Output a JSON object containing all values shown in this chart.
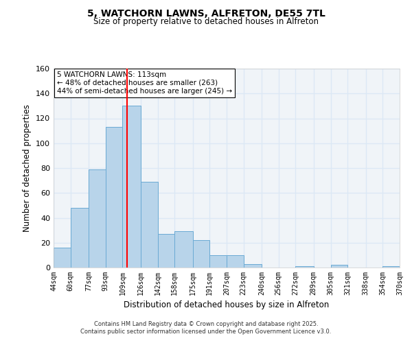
{
  "title": "5, WATCHORN LAWNS, ALFRETON, DE55 7TL",
  "subtitle": "Size of property relative to detached houses in Alfreton",
  "xlabel": "Distribution of detached houses by size in Alfreton",
  "ylabel": "Number of detached properties",
  "bar_color": "#b8d4ea",
  "bar_edge_color": "#6aaad4",
  "background_color": "#f0f4f8",
  "grid_color": "#dce8f5",
  "vline_x": 113,
  "vline_color": "red",
  "annotation_lines": [
    "5 WATCHORN LAWNS: 113sqm",
    "← 48% of detached houses are smaller (263)",
    "44% of semi-detached houses are larger (245) →"
  ],
  "bin_edges": [
    44,
    60,
    77,
    93,
    109,
    126,
    142,
    158,
    175,
    191,
    207,
    223,
    240,
    256,
    272,
    289,
    305,
    321,
    338,
    354,
    370
  ],
  "bin_heights": [
    16,
    48,
    79,
    113,
    130,
    69,
    27,
    29,
    22,
    10,
    10,
    3,
    0,
    0,
    1,
    0,
    2,
    0,
    0,
    1
  ],
  "tick_labels": [
    "44sqm",
    "60sqm",
    "77sqm",
    "93sqm",
    "109sqm",
    "126sqm",
    "142sqm",
    "158sqm",
    "175sqm",
    "191sqm",
    "207sqm",
    "223sqm",
    "240sqm",
    "256sqm",
    "272sqm",
    "289sqm",
    "305sqm",
    "321sqm",
    "338sqm",
    "354sqm",
    "370sqm"
  ],
  "ylim": [
    0,
    160
  ],
  "yticks": [
    0,
    20,
    40,
    60,
    80,
    100,
    120,
    140,
    160
  ],
  "footnote1": "Contains HM Land Registry data © Crown copyright and database right 2025.",
  "footnote2": "Contains public sector information licensed under the Open Government Licence v3.0."
}
